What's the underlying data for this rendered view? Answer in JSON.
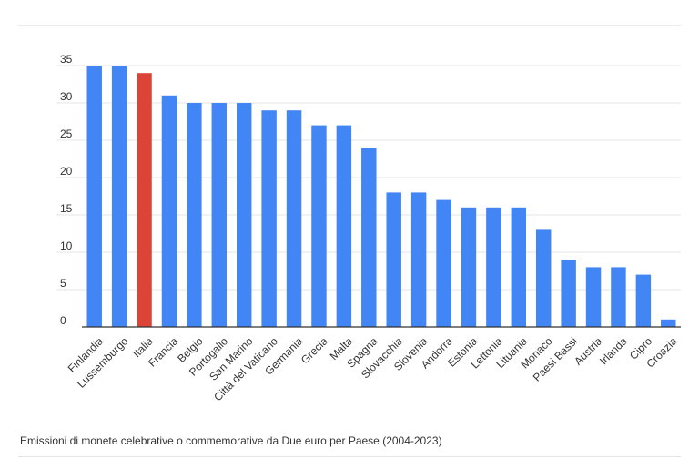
{
  "chart_data": {
    "type": "bar",
    "title": "",
    "xlabel": "",
    "ylabel": "",
    "ylim": [
      0,
      35
    ],
    "yticks": [
      0,
      5,
      10,
      15,
      20,
      25,
      30,
      35
    ],
    "grid": true,
    "categories": [
      "Finlandia",
      "Lussemburgo",
      "Italia",
      "Francia",
      "Belgio",
      "Portogallo",
      "San Marino",
      "Città del Vaticano",
      "Germania",
      "Grecia",
      "Malta",
      "Spagna",
      "Slovacchia",
      "Slovenia",
      "Andorra",
      "Estonia",
      "Lettonia",
      "Lituania",
      "Monaco",
      "Paesi Bassi",
      "Austria",
      "Irlanda",
      "Cipro",
      "Croazia"
    ],
    "values": [
      35,
      35,
      34,
      31,
      30,
      30,
      30,
      29,
      29,
      27,
      27,
      24,
      18,
      18,
      17,
      16,
      16,
      16,
      13,
      9,
      8,
      8,
      7,
      1
    ],
    "colors": {
      "default": "#4285f4",
      "highlight": "#db4437"
    },
    "highlight_category": "Italia"
  },
  "caption": "Emissioni di monete celebrative o commemorative da Due euro per Paese (2004-2023)"
}
